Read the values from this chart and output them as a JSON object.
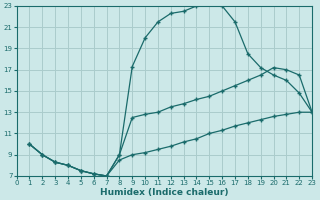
{
  "xlabel": "Humidex (Indice chaleur)",
  "bg_color": "#cce8e8",
  "grid_color": "#aacccc",
  "line_color": "#1a6b6b",
  "xlim": [
    0,
    23
  ],
  "ylim": [
    7,
    23
  ],
  "yticks": [
    7,
    9,
    11,
    13,
    15,
    17,
    19,
    21,
    23
  ],
  "xticks": [
    0,
    1,
    2,
    3,
    4,
    5,
    6,
    7,
    8,
    9,
    10,
    11,
    12,
    13,
    14,
    15,
    16,
    17,
    18,
    19,
    20,
    21,
    22,
    23
  ],
  "curve1_x": [
    1,
    2,
    3,
    4,
    5,
    6,
    7,
    8,
    9,
    10,
    11,
    12,
    13,
    14,
    15,
    16,
    17,
    18,
    19,
    20,
    21,
    22,
    23
  ],
  "curve1_y": [
    10,
    9,
    8.3,
    8.0,
    7.5,
    7.2,
    7.0,
    9.0,
    17.3,
    20.0,
    21.5,
    22.3,
    22.5,
    23.0,
    23.2,
    23.0,
    21.5,
    18.5,
    17.2,
    16.5,
    16.0,
    14.8,
    13.0
  ],
  "curve2_x": [
    1,
    2,
    3,
    4,
    5,
    6,
    7,
    8,
    9,
    10,
    11,
    12,
    13,
    14,
    15,
    16,
    17,
    18,
    19,
    20,
    21,
    22,
    23
  ],
  "curve2_y": [
    10,
    9,
    8.3,
    8.0,
    7.5,
    7.2,
    7.0,
    9.0,
    12.5,
    12.8,
    13.0,
    13.5,
    13.8,
    14.2,
    14.5,
    15.0,
    15.5,
    16.0,
    16.5,
    17.2,
    17.0,
    16.5,
    13.0
  ],
  "curve3_x": [
    1,
    2,
    3,
    4,
    5,
    6,
    7,
    8,
    9,
    10,
    11,
    12,
    13,
    14,
    15,
    16,
    17,
    18,
    19,
    20,
    21,
    22,
    23
  ],
  "curve3_y": [
    10,
    9,
    8.3,
    8.0,
    7.5,
    7.2,
    7.0,
    8.5,
    9.0,
    9.2,
    9.5,
    9.8,
    10.2,
    10.5,
    11.0,
    11.3,
    11.7,
    12.0,
    12.3,
    12.6,
    12.8,
    13.0,
    13.0
  ]
}
